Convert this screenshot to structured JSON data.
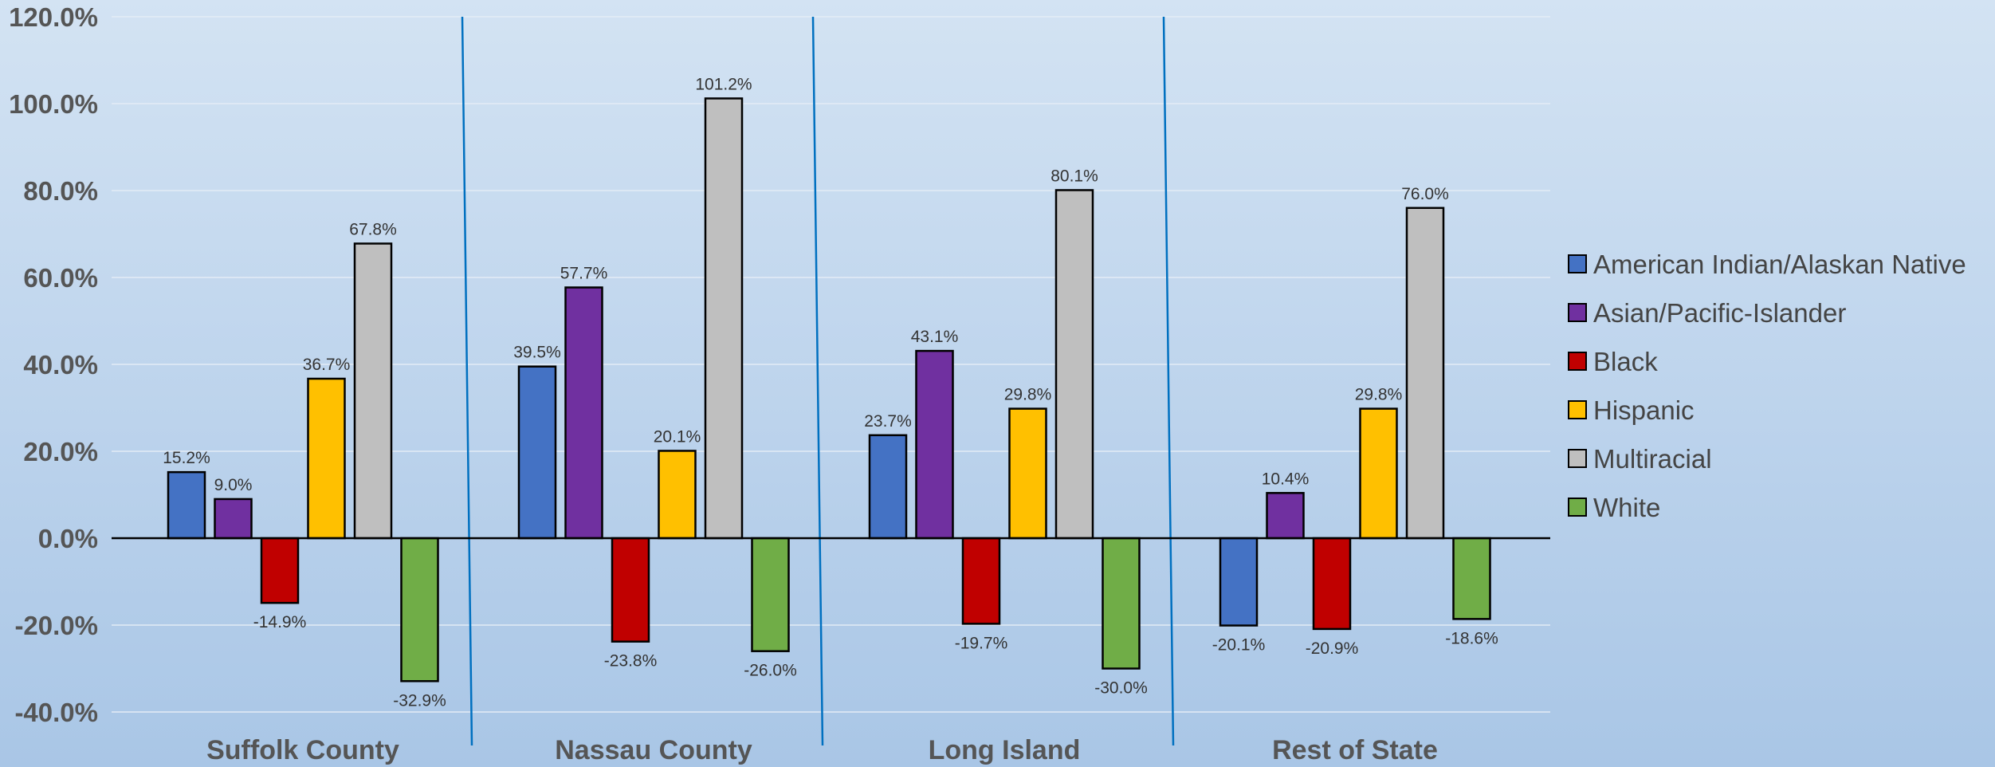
{
  "chart_data": {
    "type": "bar",
    "title": "",
    "xlabel": "",
    "ylabel": "",
    "categories": [
      "Suffolk County",
      "Nassau County",
      "Long Island",
      "Rest of State"
    ],
    "series": [
      {
        "name": "American Indian/Alaskan Native",
        "color": "#4472c4",
        "values": [
          15.2,
          39.5,
          23.7,
          -20.1
        ]
      },
      {
        "name": "Asian/Pacific-Islander",
        "color": "#7030a0",
        "values": [
          9.0,
          57.7,
          43.1,
          10.4
        ]
      },
      {
        "name": "Black",
        "color": "#c00000",
        "values": [
          -14.9,
          -23.8,
          -19.7,
          -20.9
        ]
      },
      {
        "name": "Hispanic",
        "color": "#ffc000",
        "values": [
          36.7,
          20.1,
          29.8,
          29.8
        ]
      },
      {
        "name": "Multiracial",
        "color": "#bfbfbf",
        "values": [
          67.8,
          101.2,
          80.1,
          76.0
        ]
      },
      {
        "name": "White",
        "color": "#70ad47",
        "values": [
          -32.9,
          -26.0,
          -30.0,
          -18.6
        ]
      }
    ],
    "ylim": [
      -40,
      120
    ],
    "yticks": [
      120,
      100,
      80,
      60,
      40,
      20,
      0,
      -20,
      -40
    ],
    "grid": true,
    "legend_position": "right",
    "value_format": "percent_1dp",
    "separator_color": "#0070c0"
  }
}
